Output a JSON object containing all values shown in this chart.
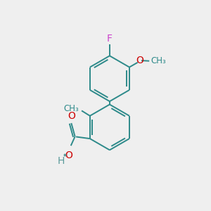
{
  "bg_color": "#efefef",
  "bond_color": "#2d8a8a",
  "atom_colors": {
    "F": "#cc44cc",
    "O": "#cc0000",
    "H": "#5a9a9a",
    "C": "#2d8a8a"
  },
  "font_size_atom": 10,
  "font_size_small": 8.5,
  "line_width": 1.4,
  "fig_size": [
    3.0,
    3.0
  ],
  "dpi": 100
}
